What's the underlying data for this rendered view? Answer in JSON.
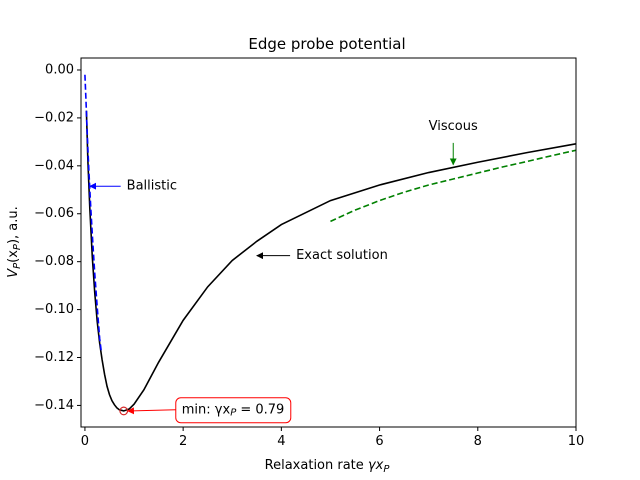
{
  "chart_data": {
    "type": "line",
    "title": "Edge probe potential",
    "xlabel_main": "Relaxation rate ",
    "xlabel_var": "γx",
    "xlabel_sub": "P",
    "ylabel_main": "V",
    "ylabel_sub": "P",
    "ylabel_arg": "(x",
    "ylabel_arg_sub": "P",
    "ylabel_tail": "), a.u.",
    "xlim": [
      -0.08,
      10
    ],
    "ylim": [
      -0.149,
      0.005
    ],
    "xticks": [
      0,
      2,
      4,
      6,
      8,
      10
    ],
    "yticks": [
      0.0,
      -0.02,
      -0.04,
      -0.06,
      -0.08,
      -0.1,
      -0.12,
      -0.14
    ],
    "ytick_labels": [
      "0.00",
      "−0.02",
      "−0.04",
      "−0.06",
      "−0.08",
      "−0.10",
      "−0.12",
      "−0.14"
    ],
    "grid": false,
    "series": [
      {
        "style": "solid",
        "color": "#000000",
        "points": [
          [
            0.03,
            -0.017
          ],
          [
            0.06,
            -0.038
          ],
          [
            0.1,
            -0.058
          ],
          [
            0.15,
            -0.078
          ],
          [
            0.2,
            -0.093
          ],
          [
            0.25,
            -0.105
          ],
          [
            0.3,
            -0.114
          ],
          [
            0.35,
            -0.121
          ],
          [
            0.4,
            -0.127
          ],
          [
            0.45,
            -0.132
          ],
          [
            0.5,
            -0.1355
          ],
          [
            0.55,
            -0.138
          ],
          [
            0.6,
            -0.1397
          ],
          [
            0.65,
            -0.141
          ],
          [
            0.7,
            -0.1418
          ],
          [
            0.79,
            -0.1423
          ],
          [
            0.9,
            -0.1415
          ],
          [
            1.0,
            -0.1395
          ],
          [
            1.2,
            -0.1335
          ],
          [
            1.5,
            -0.122
          ],
          [
            2.0,
            -0.1045
          ],
          [
            2.5,
            -0.0905
          ],
          [
            3.0,
            -0.0795
          ],
          [
            3.5,
            -0.0715
          ],
          [
            4.0,
            -0.0645
          ],
          [
            5.0,
            -0.0545
          ],
          [
            6.0,
            -0.048
          ],
          [
            7.0,
            -0.0428
          ],
          [
            8.0,
            -0.0385
          ],
          [
            9.0,
            -0.0345
          ],
          [
            10.0,
            -0.0308
          ]
        ]
      },
      {
        "style": "dashed",
        "color": "#0000ff",
        "points": [
          [
            0.0,
            -0.002
          ],
          [
            0.02,
            -0.012
          ],
          [
            0.05,
            -0.028
          ],
          [
            0.08,
            -0.042
          ],
          [
            0.12,
            -0.058
          ],
          [
            0.16,
            -0.072
          ],
          [
            0.2,
            -0.085
          ],
          [
            0.25,
            -0.099
          ],
          [
            0.3,
            -0.112
          ],
          [
            0.33,
            -0.117
          ]
        ]
      },
      {
        "style": "dashed",
        "color": "#008000",
        "points": [
          [
            5.0,
            -0.0632
          ],
          [
            5.5,
            -0.0585
          ],
          [
            6.0,
            -0.0545
          ],
          [
            6.5,
            -0.051
          ],
          [
            7.0,
            -0.048
          ],
          [
            7.5,
            -0.0455
          ],
          [
            8.0,
            -0.043
          ],
          [
            8.5,
            -0.0405
          ],
          [
            9.0,
            -0.0382
          ],
          [
            9.5,
            -0.0358
          ],
          [
            10.0,
            -0.0335
          ]
        ]
      }
    ],
    "marker": {
      "x": 0.79,
      "y": -0.1423,
      "color": "#d62728"
    },
    "annotations": [
      {
        "name": "ballistic",
        "text": "Ballistic",
        "color": "#0000ff",
        "arrow_to": [
          0.1,
          -0.0485
        ],
        "text_at": [
          0.85,
          -0.0485
        ]
      },
      {
        "name": "viscous",
        "text": "Viscous",
        "color": "#008000",
        "arrow_to": [
          7.5,
          -0.0395
        ],
        "text_at": [
          7.5,
          -0.025
        ]
      },
      {
        "name": "exact",
        "text": "Exact solution",
        "color": "#000000",
        "arrow_to": [
          3.5,
          -0.0775
        ],
        "text_at": [
          4.3,
          -0.0775
        ]
      },
      {
        "name": "min",
        "text": "min: γx",
        "text_sub": "P",
        "text_tail": " = 0.79",
        "color": "#ff0000",
        "arrow_to": [
          0.87,
          -0.1423
        ],
        "text_at": [
          1.85,
          -0.1418
        ]
      }
    ]
  }
}
